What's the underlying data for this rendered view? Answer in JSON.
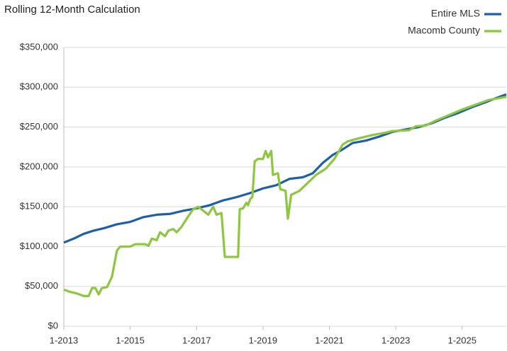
{
  "chart_data": {
    "type": "line",
    "title": "Rolling 12-Month Calculation",
    "series": [
      {
        "name": "Entire MLS",
        "color": "#1f5fa8",
        "x": [
          2013.0,
          2013.3,
          2013.6,
          2013.9,
          2014.2,
          2014.6,
          2015.0,
          2015.4,
          2015.8,
          2016.2,
          2016.6,
          2017.0,
          2017.4,
          2017.8,
          2018.2,
          2018.6,
          2019.0,
          2019.4,
          2019.8,
          2020.2,
          2020.5,
          2020.8,
          2021.1,
          2021.4,
          2021.7,
          2022.1,
          2022.5,
          2022.9,
          2023.3,
          2023.7,
          2024.1,
          2024.5,
          2024.9,
          2025.3,
          2025.7,
          2026.0,
          2026.33
        ],
        "values": [
          105000,
          110000,
          116000,
          120000,
          123000,
          128000,
          131000,
          137000,
          140000,
          141000,
          145000,
          148000,
          152000,
          158000,
          162000,
          167000,
          173000,
          177000,
          185000,
          187000,
          192000,
          205000,
          215000,
          222000,
          230000,
          233000,
          238000,
          244000,
          247000,
          250000,
          255000,
          262000,
          268000,
          275000,
          281000,
          286000,
          291000
        ]
      },
      {
        "name": "Macomb County",
        "color": "#8dc63f",
        "x": [
          2013.0,
          2013.2,
          2013.4,
          2013.6,
          2013.75,
          2013.85,
          2013.95,
          2014.05,
          2014.15,
          2014.3,
          2014.45,
          2014.6,
          2014.7,
          2015.0,
          2015.15,
          2015.45,
          2015.55,
          2015.65,
          2015.8,
          2015.9,
          2016.05,
          2016.15,
          2016.3,
          2016.4,
          2016.55,
          2016.75,
          2016.9,
          2017.05,
          2017.2,
          2017.35,
          2017.5,
          2017.6,
          2017.75,
          2017.85,
          2018.25,
          2018.3,
          2018.4,
          2018.5,
          2018.55,
          2018.62,
          2018.68,
          2018.75,
          2018.85,
          2019.0,
          2019.08,
          2019.15,
          2019.25,
          2019.3,
          2019.45,
          2019.52,
          2019.68,
          2019.75,
          2019.85,
          2020.1,
          2020.4,
          2020.6,
          2020.9,
          2021.15,
          2021.4,
          2021.55,
          2021.9,
          2022.3,
          2022.7,
          2022.9,
          2023.4,
          2023.6,
          2023.9,
          2024.2,
          2024.6,
          2025.0,
          2025.4,
          2025.8,
          2026.33
        ],
        "values": [
          46000,
          43000,
          41000,
          38000,
          38000,
          48000,
          48000,
          40000,
          48000,
          49000,
          62000,
          95000,
          100000,
          100000,
          103000,
          103000,
          101000,
          110000,
          108000,
          118000,
          113000,
          120000,
          122000,
          118000,
          125000,
          138000,
          147000,
          150000,
          145000,
          140000,
          150000,
          140000,
          142000,
          87000,
          87000,
          147000,
          148000,
          155000,
          152000,
          160000,
          162000,
          207000,
          210000,
          210000,
          220000,
          212000,
          220000,
          190000,
          192000,
          172000,
          170000,
          135000,
          165000,
          170000,
          182000,
          190000,
          198000,
          210000,
          228000,
          232000,
          236000,
          240000,
          243000,
          245000,
          246000,
          251000,
          252000,
          258000,
          265000,
          272000,
          278000,
          284000,
          288000
        ]
      }
    ],
    "xlim": [
      2013.0,
      2026.33
    ],
    "xticks": [
      {
        "value": 2013,
        "label": "1-2013"
      },
      {
        "value": 2015,
        "label": "1-2015"
      },
      {
        "value": 2017,
        "label": "1-2017"
      },
      {
        "value": 2019,
        "label": "1-2019"
      },
      {
        "value": 2021,
        "label": "1-2021"
      },
      {
        "value": 2023,
        "label": "1-2023"
      },
      {
        "value": 2025,
        "label": "1-2025"
      }
    ],
    "ylim": [
      0,
      350000
    ],
    "yticks": [
      {
        "value": 0,
        "label": "$0"
      },
      {
        "value": 50000,
        "label": "$50,000"
      },
      {
        "value": 100000,
        "label": "$100,000"
      },
      {
        "value": 150000,
        "label": "$150,000"
      },
      {
        "value": 200000,
        "label": "$200,000"
      },
      {
        "value": 250000,
        "label": "$250,000"
      },
      {
        "value": 300000,
        "label": "$300,000"
      },
      {
        "value": 350000,
        "label": "$350,000"
      }
    ],
    "grid": true,
    "legend": "top-right"
  }
}
